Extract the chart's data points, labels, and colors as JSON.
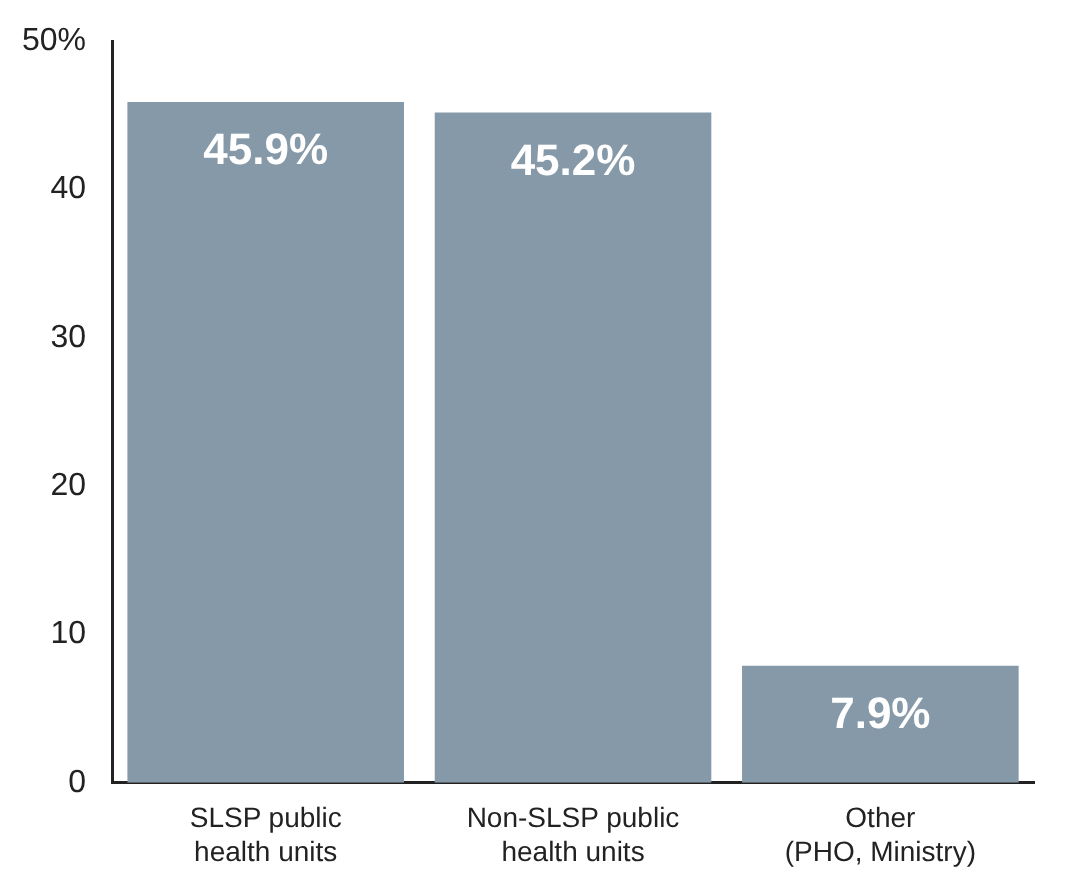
{
  "chart_data": {
    "type": "bar",
    "categories": [
      "SLSP public\nhealth units",
      "Non-SLSP public\nhealth units",
      "Other\n(PHO, Ministry)"
    ],
    "values": [
      45.9,
      45.2,
      7.9
    ],
    "value_labels": [
      "45.9%",
      "45.2%",
      "7.9%"
    ],
    "color": "#8599a8",
    "ylim": [
      0,
      50
    ],
    "yticks": [
      0,
      10,
      20,
      30,
      40,
      {
        "value": 50,
        "label": "50%"
      }
    ],
    "grid": false,
    "legend": false
  }
}
